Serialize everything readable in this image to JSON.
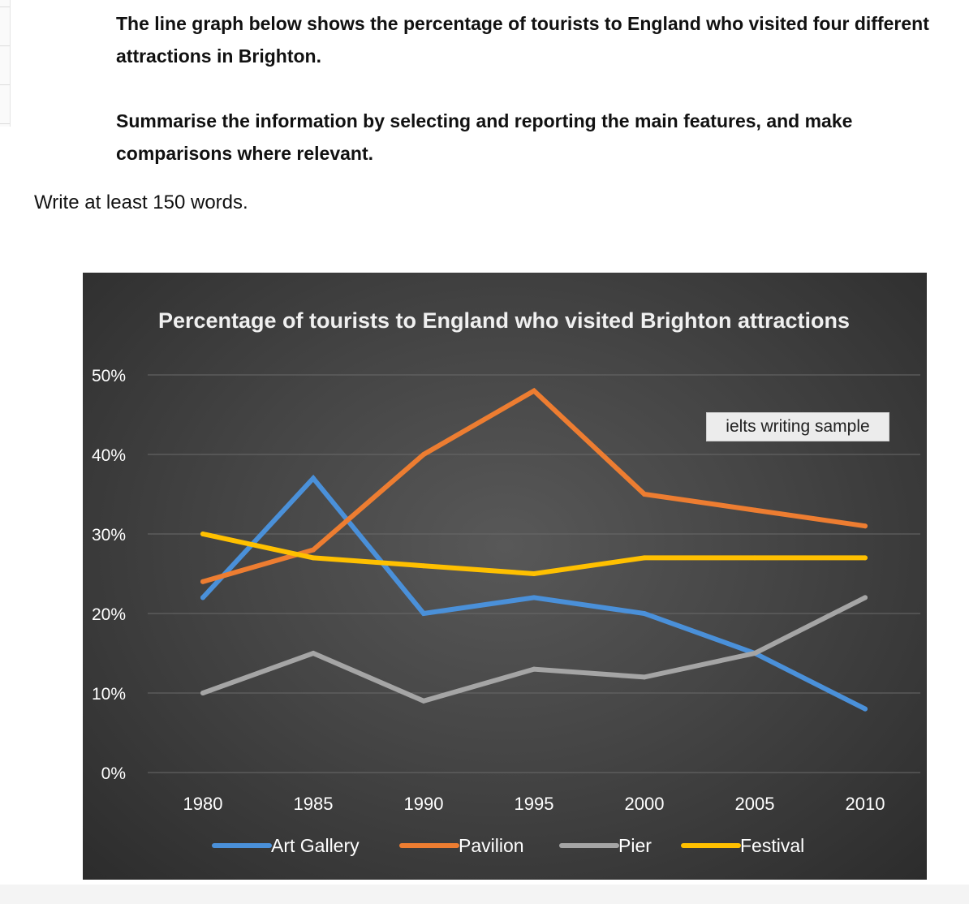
{
  "prompt": {
    "para1": "The line graph below shows the percentage of tourists to England who visited four different attractions in Brighton.",
    "para2": "Summarise the information by selecting and reporting the main features, and make comparisons where relevant.",
    "instruction": "Write at least 150 words."
  },
  "watermark": "ielts writing sample",
  "chart_data": {
    "type": "line",
    "title": "Percentage of tourists to England who visited Brighton attractions",
    "x": [
      "1980",
      "1985",
      "1990",
      "1995",
      "2000",
      "2005",
      "2010"
    ],
    "yticks": [
      "0%",
      "10%",
      "20%",
      "30%",
      "40%",
      "50%"
    ],
    "ylim": [
      0,
      50
    ],
    "grid": true,
    "legend": "bottom",
    "series": [
      {
        "name": "Art Gallery",
        "color": "#4a90d9",
        "values": [
          22,
          37,
          20,
          22,
          20,
          15,
          8
        ]
      },
      {
        "name": "Pavilion",
        "color": "#ed7d31",
        "values": [
          24,
          28,
          40,
          48,
          35,
          33,
          31
        ]
      },
      {
        "name": "Pier",
        "color": "#a5a5a5",
        "values": [
          10,
          15,
          9,
          13,
          12,
          15,
          22
        ]
      },
      {
        "name": "Festival",
        "color": "#ffc000",
        "values": [
          30,
          27,
          26,
          25,
          27,
          27,
          27
        ]
      }
    ]
  }
}
